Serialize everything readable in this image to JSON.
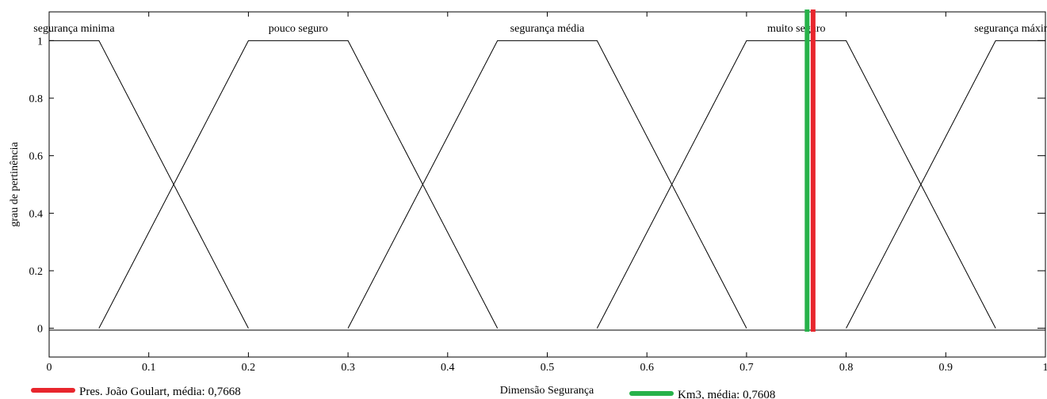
{
  "chart_data": {
    "type": "line",
    "xlabel": "Dimensão Segurança",
    "ylabel": "grau de pertinência",
    "xlim": [
      0,
      1
    ],
    "ylim": [
      -0.1,
      1.1
    ],
    "grid": false,
    "x_ticks": [
      0,
      0.1,
      0.2,
      0.3,
      0.4,
      0.5,
      0.6,
      0.7,
      0.8,
      0.9,
      1
    ],
    "x_tick_labels": [
      "0",
      "0.1",
      "0.2",
      "0.3",
      "0.4",
      "0.5",
      "0.6",
      "0.7",
      "0.8",
      "0.9",
      "1"
    ],
    "y_ticks": [
      0,
      0.2,
      0.4,
      0.6,
      0.8,
      1
    ],
    "y_tick_labels": [
      "0",
      "0.2",
      "0.4",
      "0.6",
      "0.8",
      "1"
    ],
    "series": [
      {
        "name": "segurança minima",
        "x": [
          0,
          0.05,
          0.2
        ],
        "y": [
          1,
          1,
          0
        ]
      },
      {
        "name": "pouco seguro",
        "x": [
          0.05,
          0.2,
          0.3,
          0.45
        ],
        "y": [
          0,
          1,
          1,
          0
        ]
      },
      {
        "name": "segurança média",
        "x": [
          0.3,
          0.45,
          0.55,
          0.7
        ],
        "y": [
          0,
          1,
          1,
          0
        ]
      },
      {
        "name": "muito seguro",
        "x": [
          0.55,
          0.7,
          0.8,
          0.95
        ],
        "y": [
          0,
          1,
          1,
          0
        ]
      },
      {
        "name": "segurança máxima",
        "x": [
          0.8,
          0.95,
          1
        ],
        "y": [
          0,
          1,
          1
        ]
      }
    ],
    "markers": [
      {
        "label": "Pres. João Goulart, média: 0,7668",
        "x": 0.7668,
        "color": "#e8262d"
      },
      {
        "label": "Km3, média: 0,7608",
        "x": 0.7608,
        "color": "#27b24a"
      }
    ],
    "legend_position": "bottom"
  }
}
